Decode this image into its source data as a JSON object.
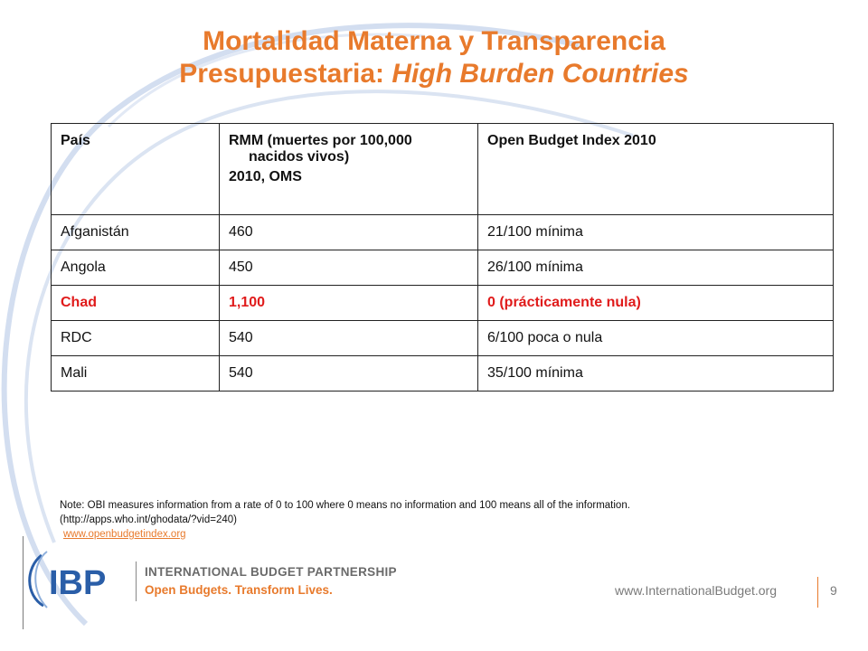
{
  "title": {
    "line1": "Mortalidad Materna y Transparencia",
    "line2_prefix": "Presupuestaria: ",
    "line2_italic": "High Burden Countries"
  },
  "table": {
    "headers": {
      "country": "País",
      "rmm_line1": "RMM (muertes por 100,000",
      "rmm_line2": "nacidos vivos)",
      "rmm_line3": "2010, OMS",
      "obi": "Open Budget Index 2010"
    },
    "rows": [
      {
        "country": "Afganistán",
        "rmm": "460",
        "obi": "21/100 mínima"
      },
      {
        "country": "Angola",
        "rmm": "450",
        "obi": "26/100 mínima"
      },
      {
        "country": "Chad",
        "rmm": "1,100",
        "obi": "0 (prácticamente nula)"
      },
      {
        "country": "RDC",
        "rmm": "540",
        "obi": "6/100 poca o nula"
      },
      {
        "country": "Mali",
        "rmm": "540",
        "obi": "35/100 mínima"
      }
    ],
    "highlight_color": "#e01b1b"
  },
  "note": {
    "line1": "Note: OBI measures information from a rate of 0 to 100 where  0 means no information and 100 means  all of the information.",
    "line2": "(http://apps.who.int/ghodata/?vid=240)",
    "link": "www.openbudgetindex.org"
  },
  "footer": {
    "logo_text": "IBP",
    "org_name": "INTERNATIONAL BUDGET PARTNERSHIP",
    "tagline": "Open Budgets. Transform Lives.",
    "url": "www.InternationalBudget.org",
    "page_number": "9"
  },
  "colors": {
    "accent": "#e87a2c",
    "brand_blue": "#2a5ea8",
    "swirl": "#c9d6ea"
  }
}
